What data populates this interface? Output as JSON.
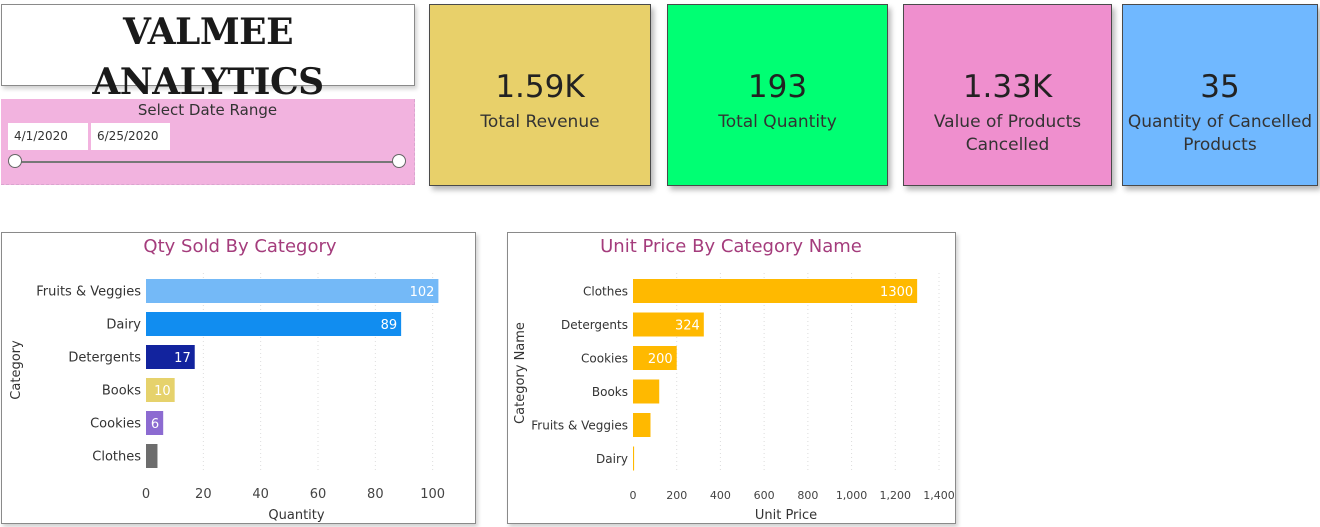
{
  "brand": {
    "title": "VALMEE ANALYTICS"
  },
  "date_range": {
    "title": "Select Date Range",
    "start": "4/1/2020",
    "end": "6/25/2020",
    "slider_start": 0,
    "slider_end": 1
  },
  "kpis": [
    {
      "value": "1.59K",
      "label": "Total Revenue",
      "color": "#e8d06a"
    },
    {
      "value": "193",
      "label": "Total Quantity",
      "color": "#00ff73"
    },
    {
      "value": "1.33K",
      "label": "Value of Products Cancelled",
      "color": "#ef8fce"
    },
    {
      "value": "35",
      "label": "Quantity of Cancelled Products",
      "color": "#70b8ff"
    }
  ],
  "chart_data": [
    {
      "type": "bar",
      "orientation": "horizontal",
      "title": "Qty Sold By Category",
      "xlabel": "Quantity",
      "ylabel": "Category",
      "categories": [
        "Fruits & Veggies",
        "Dairy",
        "Detergents",
        "Books",
        "Cookies",
        "Clothes"
      ],
      "values": [
        102,
        89,
        17,
        10,
        6,
        4
      ],
      "data_labels": [
        "102",
        "89",
        "17",
        "10",
        "6",
        ""
      ],
      "colors": [
        "#74b9f7",
        "#118df0",
        "#12239e",
        "#e6d26c",
        "#8c6bd1",
        "#6d6d6d"
      ],
      "label_colors": [
        "#ffffff",
        "#ffffff",
        "#ffffff",
        "#ffffff",
        "#ffffff",
        "#ffffff"
      ],
      "xlim": [
        0,
        105
      ],
      "xticks": [
        0,
        20,
        40,
        60,
        80,
        100
      ],
      "xtick_labels": [
        "0",
        "20",
        "40",
        "60",
        "80",
        "100"
      ],
      "title_color": "#a43c7c",
      "grid": true
    },
    {
      "type": "bar",
      "orientation": "horizontal",
      "title": "Unit Price By Category Name",
      "xlabel": "Unit Price",
      "ylabel": "Category Name",
      "categories": [
        "Clothes",
        "Detergents",
        "Cookies",
        "Books",
        "Fruits & Veggies",
        "Dairy"
      ],
      "values": [
        1300,
        324,
        200,
        120,
        80,
        5
      ],
      "data_labels": [
        "1300",
        "324",
        "200",
        "",
        "",
        ""
      ],
      "colors": [
        "#ffb900",
        "#ffb900",
        "#ffb900",
        "#ffb900",
        "#ffb900",
        "#ffb900"
      ],
      "label_colors": [
        "#ffffff",
        "#ffffff",
        "#ffffff",
        "#ffffff",
        "#ffffff",
        "#ffffff"
      ],
      "xlim": [
        0,
        1400
      ],
      "xticks": [
        0,
        200,
        400,
        600,
        800,
        1000,
        1200,
        1400
      ],
      "xtick_labels": [
        "0",
        "200",
        "400",
        "600",
        "800",
        "1,000",
        "1,200",
        "1,400"
      ],
      "title_color": "#a43c7c",
      "grid": true
    }
  ]
}
